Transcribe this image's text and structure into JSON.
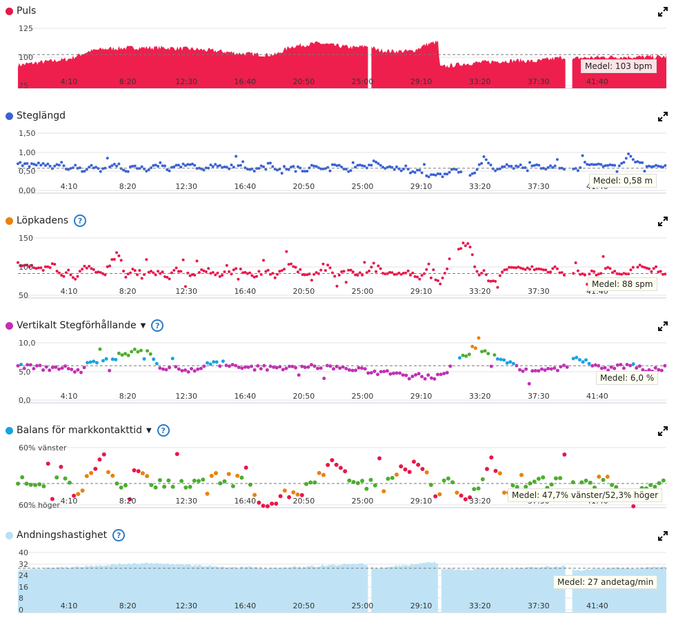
{
  "x_ticks": [
    "4:10",
    "8:20",
    "12:30",
    "16:40",
    "20:50",
    "25:00",
    "29:10",
    "33:20",
    "37:30",
    "41:40"
  ],
  "panels": [
    {
      "id": "puls",
      "title": "Puls",
      "dot_color": "#e8174a",
      "help": false,
      "dropdown": false,
      "avg_label": "Medel: 103 bpm"
    },
    {
      "id": "steg",
      "title": "Steglängd",
      "dot_color": "#3a62d6",
      "help": false,
      "dropdown": false,
      "avg_label": "Medel: 0,58 m"
    },
    {
      "id": "kad",
      "title": "Löpkadens",
      "dot_color": "#e8820c",
      "help": true,
      "dropdown": false,
      "avg_label": "Medel: 88 spm"
    },
    {
      "id": "vert",
      "title": "Vertikalt Stegförhållande",
      "dot_color": "#c22fb4",
      "help": true,
      "dropdown": true,
      "avg_label": "Medel: 6,0 %"
    },
    {
      "id": "bal",
      "title": "Balans för markkontakttid",
      "dot_color": "#17a3e0",
      "help": true,
      "dropdown": true,
      "avg_label": "Medel: 47,7% vänster/52,3% höger"
    },
    {
      "id": "andn",
      "title": "Andningshastighet",
      "dot_color": "#b7e0f4",
      "help": true,
      "dropdown": false,
      "avg_label": "Medel: 27 andetag/min"
    }
  ],
  "chart_data": [
    {
      "type": "area",
      "title": "Puls",
      "unit": "bpm",
      "y_ticks": [
        "125",
        "100",
        "75"
      ],
      "ylim": [
        75,
        130
      ],
      "average": 103,
      "color": "#ee1f4d",
      "x_minutes": [
        0,
        2,
        3.5,
        5,
        6,
        8,
        10,
        12,
        14,
        15.5,
        17,
        18,
        19,
        21,
        22,
        23.5,
        24.5,
        25,
        26,
        27.5,
        28.5,
        29.3,
        29.4,
        31,
        33,
        35,
        36,
        37,
        38.2,
        38.6,
        39,
        41,
        43,
        45.2
      ],
      "values": [
        94,
        97,
        99,
        106,
        108,
        109,
        109,
        108,
        106,
        104,
        103,
        103,
        110,
        113,
        111,
        109,
        111,
        107,
        106,
        106,
        112,
        114,
        92,
        95,
        97,
        98,
        97,
        99,
        101,
        98,
        100,
        101,
        101,
        101
      ],
      "gaps_minutes": [
        [
          24.4,
          24.6
        ],
        [
          38.2,
          38.6
        ]
      ]
    },
    {
      "type": "scatter",
      "title": "Steglängd",
      "unit": "m",
      "y_ticks": [
        "1,50",
        "1,00",
        "0,50",
        "0,00"
      ],
      "ylim": [
        0,
        1.5
      ],
      "average": 0.58,
      "color": "#3a62d6",
      "x_minutes": [
        0,
        0.5,
        1,
        1.5,
        2,
        2.5,
        3,
        3.5,
        4,
        4.5,
        5,
        5.5,
        6,
        6.5,
        7,
        7.5,
        8,
        8.5,
        9,
        9.5,
        10,
        10.5,
        11,
        11.5,
        12,
        12.5,
        13,
        13.5,
        14,
        14.5,
        15,
        15.5,
        16,
        16.5,
        17,
        17.5,
        18,
        18.5,
        19,
        19.5,
        20,
        20.5,
        21,
        21.5,
        22,
        22.5,
        23,
        23.5,
        24,
        24.5,
        25,
        25.5,
        26,
        26.5,
        27,
        27.5,
        28,
        28.5,
        29,
        29.5,
        30,
        30.5,
        31,
        31.5,
        32,
        32.5,
        33,
        33.5,
        34,
        34.5,
        35,
        35.5,
        36,
        36.5,
        37,
        37.5,
        38,
        38.5,
        39,
        39.5,
        40,
        40.5,
        41,
        41.5,
        42,
        42.5,
        43,
        43.5,
        44,
        44.5,
        45
      ],
      "values": [
        0.68,
        0.7,
        0.65,
        0.72,
        0.66,
        0.58,
        0.74,
        0.55,
        0.62,
        0.5,
        0.66,
        0.57,
        0.52,
        0.64,
        0.7,
        0.48,
        0.61,
        0.58,
        0.54,
        0.66,
        0.7,
        0.55,
        0.62,
        0.68,
        0.7,
        0.6,
        0.52,
        0.66,
        0.62,
        0.58,
        0.66,
        0.62,
        0.6,
        0.56,
        0.64,
        0.7,
        0.54,
        0.62,
        0.58,
        0.66,
        0.5,
        0.62,
        0.6,
        0.55,
        0.64,
        0.68,
        0.52,
        0.6,
        0.66,
        0.62,
        0.7,
        0.58,
        0.62,
        0.5,
        0.64,
        0.45,
        0.55,
        0.4,
        0.4,
        0.38,
        0.48,
        0.6,
        0.42,
        0.35,
        0.56,
        0.86,
        0.62,
        0.5,
        0.66,
        0.6,
        0.64,
        0.55,
        0.7,
        0.62,
        0.58,
        0.66,
        0.52,
        0.6,
        0.55,
        0.7,
        0.65,
        0.66,
        0.6,
        0.72,
        0.62,
        0.95,
        0.72,
        0.68,
        0.6,
        0.64,
        0.62
      ]
    },
    {
      "type": "scatter",
      "title": "Löpkadens",
      "unit": "spm",
      "y_ticks": [
        "150",
        "100",
        "50"
      ],
      "ylim": [
        50,
        160
      ],
      "average": 88,
      "color": "#e8174a",
      "x_minutes": [
        0,
        0.5,
        1,
        1.5,
        2,
        2.5,
        3,
        3.5,
        4,
        4.5,
        5,
        5.5,
        6,
        6.5,
        7,
        7.5,
        8,
        8.5,
        9,
        9.5,
        10,
        10.5,
        11,
        11.5,
        12,
        12.5,
        13,
        13.5,
        14,
        14.5,
        15,
        15.5,
        16,
        16.5,
        17,
        17.5,
        18,
        18.5,
        19,
        19.5,
        20,
        20.5,
        21,
        21.5,
        22,
        22.5,
        23,
        23.5,
        24,
        24.5,
        25,
        25.5,
        26,
        26.5,
        27,
        27.5,
        28,
        28.5,
        29,
        29.5,
        30,
        30.5,
        31,
        31.5,
        32,
        32.5,
        33,
        33.5,
        34,
        34.5,
        35,
        35.5,
        36,
        36.5,
        37,
        37.5,
        38,
        38.5,
        39,
        39.5,
        40,
        40.5,
        41,
        41.5,
        42,
        42.5,
        43,
        43.5,
        44,
        44.5,
        45
      ],
      "values": [
        104,
        103,
        102,
        98,
        96,
        108,
        80,
        92,
        76,
        100,
        98,
        88,
        85,
        110,
        125,
        82,
        96,
        76,
        92,
        88,
        90,
        78,
        95,
        92,
        88,
        84,
        96,
        90,
        86,
        88,
        92,
        95,
        88,
        84,
        86,
        92,
        80,
        98,
        102,
        94,
        86,
        82,
        92,
        110,
        84,
        90,
        92,
        88,
        86,
        94,
        110,
        82,
        90,
        88,
        92,
        86,
        80,
        95,
        76,
        72,
        100,
        116,
        140,
        135,
        88,
        92,
        70,
        80,
        96,
        100,
        95,
        96,
        97,
        94,
        92,
        98,
        86,
        80,
        92,
        82,
        90,
        84,
        96,
        92,
        86,
        88,
        94,
        100,
        92,
        96,
        90
      ]
    },
    {
      "type": "scatter",
      "title": "Vertikalt Stegförhållande",
      "unit": "%",
      "y_ticks": [
        "10,0",
        "5,0",
        "0,0"
      ],
      "ylim": [
        0,
        11
      ],
      "average": 6.0,
      "colors": [
        "#c22fb4",
        "#17a3e0",
        "#4cae2f",
        "#e8820c"
      ],
      "x_minutes": [
        0,
        1,
        2,
        3,
        4,
        5,
        6,
        7,
        8,
        9,
        10,
        11,
        12,
        13,
        14,
        15,
        16,
        17,
        18,
        19,
        20,
        21,
        22,
        23,
        24,
        25,
        26,
        27,
        28,
        29,
        30,
        31,
        32,
        33,
        34,
        35,
        36,
        37,
        38,
        39,
        40,
        41,
        42,
        43,
        44,
        45
      ],
      "values": [
        5.8,
        5.9,
        5.5,
        5.7,
        5.2,
        6.4,
        6.8,
        7.6,
        8.2,
        9.0,
        5.4,
        5.6,
        5.1,
        5.6,
        7.0,
        5.8,
        5.5,
        5.7,
        5.5,
        5.9,
        6.0,
        5.6,
        5.8,
        5.4,
        5.2,
        4.8,
        4.9,
        4.6,
        4.2,
        3.8,
        5.0,
        7.5,
        9.2,
        8.0,
        6.8,
        5.5,
        5.1,
        5.2,
        5.6,
        7.4,
        6.2,
        5.4,
        5.8,
        5.9,
        5.2,
        5.6
      ]
    },
    {
      "type": "scatter",
      "title": "Balans för markkontakttid",
      "unit": "%",
      "y_ticks": [
        "60% vänster",
        "60% höger"
      ],
      "average_left_pct": 47.7,
      "average_right_pct": 52.3,
      "colors": [
        "#e8174a",
        "#e8820c",
        "#4cae2f"
      ],
      "x_minutes": [
        0,
        1,
        2,
        3,
        4,
        5,
        6,
        7,
        8,
        9,
        10,
        11,
        12,
        13,
        14,
        15,
        16,
        17,
        18,
        19,
        20,
        21,
        22,
        23,
        24,
        25,
        26,
        27,
        28,
        29,
        30,
        31,
        32,
        33,
        34,
        35,
        36,
        37,
        38,
        39,
        40,
        41,
        42,
        43,
        44,
        45
      ],
      "values": [
        50,
        49,
        51,
        55,
        46,
        52,
        58,
        47,
        55,
        51,
        49,
        50,
        50,
        51,
        52,
        51,
        53,
        44,
        45,
        47,
        48,
        52,
        56,
        51,
        50,
        49,
        50,
        55,
        56,
        47,
        51,
        46,
        48,
        57,
        45,
        51,
        51,
        50,
        50,
        49,
        50,
        51,
        46,
        49,
        49,
        52
      ]
    },
    {
      "type": "area",
      "title": "Andningshastighet",
      "unit": "andetag/min",
      "y_ticks": [
        "40",
        "32",
        "24",
        "16",
        "8",
        "0"
      ],
      "ylim": [
        0,
        40
      ],
      "average": 27,
      "color": "#bfe3f5",
      "x_minutes": [
        0,
        2,
        4,
        6,
        8,
        10,
        12,
        14,
        15,
        16,
        18,
        20,
        22,
        24,
        24.5,
        25,
        27,
        29,
        29.3,
        29.4,
        31,
        33,
        35,
        37,
        38.2,
        38.6,
        39,
        41,
        43,
        45.2
      ],
      "values": [
        26,
        27,
        28,
        29,
        30,
        30,
        29,
        28,
        27,
        28,
        27,
        28,
        29,
        30,
        28,
        27,
        29,
        31,
        30,
        27,
        26,
        27,
        27,
        28,
        28,
        26,
        26,
        27,
        27,
        28
      ],
      "gaps_minutes": [
        [
          24.4,
          24.6
        ],
        [
          29.3,
          29.5
        ],
        [
          38.2,
          38.6
        ]
      ]
    }
  ]
}
